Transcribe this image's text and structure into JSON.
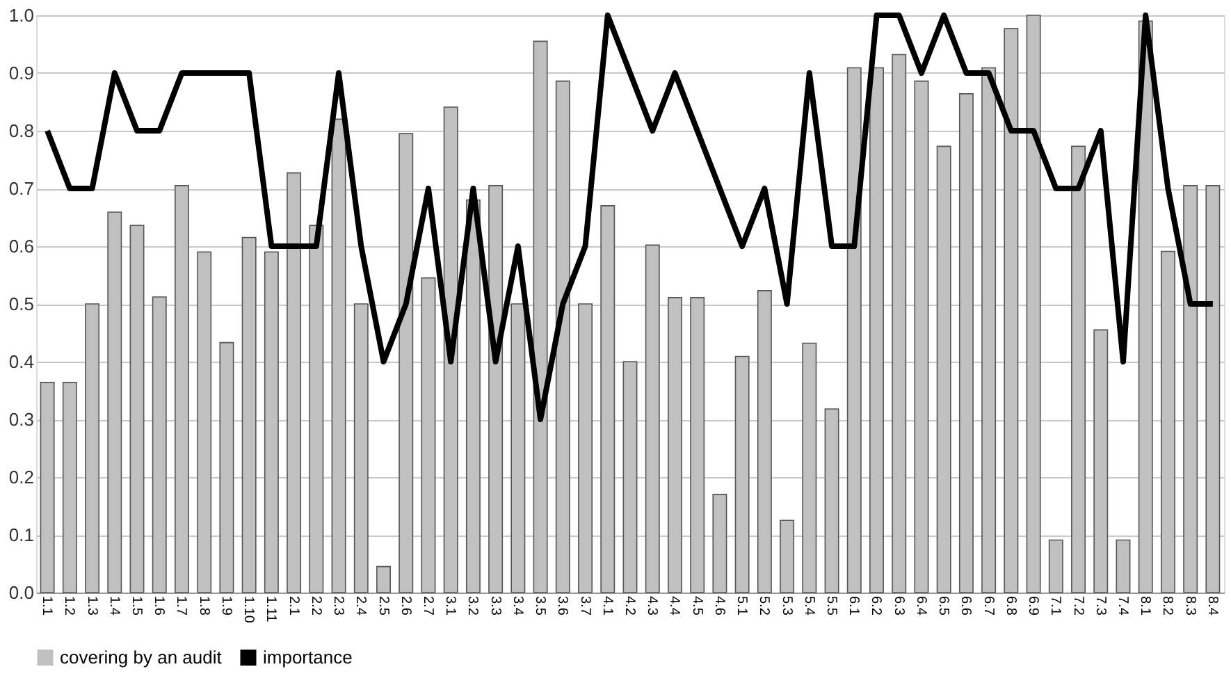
{
  "chart_data": {
    "type": "bar",
    "categories": [
      "1.1",
      "1.2",
      "1.3",
      "1.4",
      "1.5",
      "1.6",
      "1.7",
      "1.8",
      "1.9",
      "1.10",
      "1.11",
      "2.1",
      "2.2",
      "2.3",
      "2.4",
      "2.5",
      "2.6",
      "2.7",
      "3.1",
      "3.2",
      "3.3",
      "3.4",
      "3.5",
      "3.6",
      "3.7",
      "4.1",
      "4.2",
      "4.3",
      "4.4",
      "4.5",
      "4.6",
      "5.1",
      "5.2",
      "5.3",
      "5.4",
      "5.5",
      "6.1",
      "6.2",
      "6.3",
      "6.4",
      "6.5",
      "6.6",
      "6.7",
      "6.8",
      "6.9",
      "7.1",
      "7.2",
      "7.3",
      "7.4",
      "8.1",
      "8.2",
      "8.3",
      "8.4"
    ],
    "series": [
      {
        "name": "covering by an audit",
        "color": "#c0c0c0",
        "values": [
          0.364,
          0.364,
          0.5,
          0.659,
          0.636,
          0.512,
          0.705,
          0.59,
          0.433,
          0.615,
          0.59,
          0.727,
          0.636,
          0.82,
          0.5,
          0.045,
          0.795,
          0.545,
          0.841,
          0.68,
          0.705,
          0.5,
          0.955,
          0.886,
          0.5,
          0.67,
          0.4,
          0.602,
          0.511,
          0.511,
          0.17,
          0.409,
          0.523,
          0.125,
          0.432,
          0.318,
          0.909,
          0.909,
          0.932,
          0.886,
          0.773,
          0.864,
          0.909,
          0.977,
          1.0,
          0.091,
          0.773,
          0.455,
          0.091,
          0.99,
          0.591,
          0.705,
          0.705
        ]
      },
      {
        "name": "importance",
        "type": "line",
        "color": "#000000",
        "values": [
          0.8,
          0.7,
          0.7,
          0.9,
          0.8,
          0.8,
          0.9,
          0.9,
          0.9,
          0.9,
          0.6,
          0.6,
          0.6,
          0.9,
          0.6,
          0.4,
          0.5,
          0.7,
          0.4,
          0.7,
          0.4,
          0.6,
          0.3,
          0.5,
          0.6,
          1.0,
          0.9,
          0.8,
          0.9,
          0.8,
          0.7,
          0.6,
          0.7,
          0.5,
          0.9,
          0.6,
          0.6,
          1.0,
          1.0,
          0.9,
          1.0,
          0.9,
          0.9,
          0.8,
          0.8,
          0.7,
          0.7,
          0.8,
          0.4,
          1.0,
          0.7,
          0.5,
          0.5
        ]
      }
    ],
    "ylim": [
      0,
      1
    ],
    "yticks": [
      {
        "value": 0,
        "label": "0.0"
      },
      {
        "value": 0.1,
        "label": "0.1"
      },
      {
        "value": 0.2,
        "label": "0.2"
      },
      {
        "value": 0.3,
        "label": "0.3"
      },
      {
        "value": 0.4,
        "label": "0.4"
      },
      {
        "value": 0.5,
        "label": "0.5"
      },
      {
        "value": 0.6,
        "label": "0.6"
      },
      {
        "value": 0.7,
        "label": "0.7"
      },
      {
        "value": 0.8,
        "label": "0.8"
      },
      {
        "value": 0.9,
        "label": "0.9"
      },
      {
        "value": 1.0,
        "label": "1.0"
      }
    ],
    "grid": "y",
    "legend": "bottom"
  }
}
